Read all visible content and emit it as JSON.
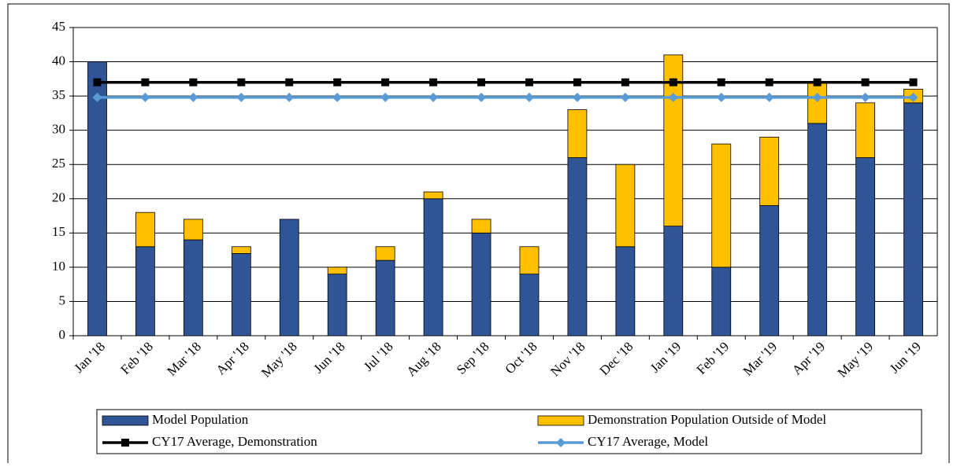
{
  "chart_data": {
    "type": "bar",
    "stacked": true,
    "categories": [
      "Jan '18",
      "Feb '18",
      "Mar '18",
      "Apr '18",
      "May '18",
      "Jun '18",
      "Jul '18",
      "Aug '18",
      "Sep '18",
      "Oct '18",
      "Nov '18",
      "Dec '18",
      "Jan '19",
      "Feb '19",
      "Mar '19",
      "Apr '19",
      "May '19",
      "Jun '19"
    ],
    "series": [
      {
        "name": "Model Population",
        "type": "bar",
        "color": "#2f5597",
        "values": [
          40,
          13,
          14,
          12,
          17,
          9,
          11,
          20,
          15,
          9,
          26,
          13,
          16,
          10,
          19,
          31,
          26,
          34
        ]
      },
      {
        "name": "Demonstration Population Outside of Model",
        "type": "bar",
        "color": "#ffc000",
        "values": [
          0,
          5,
          3,
          1,
          0,
          1,
          2,
          1,
          2,
          4,
          7,
          12,
          25,
          18,
          10,
          6,
          8,
          2
        ]
      },
      {
        "name": "CY17 Average, Demonstration",
        "type": "line",
        "marker": "square",
        "color": "#000000",
        "values": [
          37,
          37,
          37,
          37,
          37,
          37,
          37,
          37,
          37,
          37,
          37,
          37,
          37,
          37,
          37,
          37,
          37,
          37
        ]
      },
      {
        "name": "CY17 Average, Model",
        "type": "line",
        "marker": "diamond",
        "color": "#5b9bd5",
        "values": [
          34.8,
          34.8,
          34.8,
          34.8,
          34.8,
          34.8,
          34.8,
          34.8,
          34.8,
          34.8,
          34.8,
          34.8,
          34.8,
          34.8,
          34.8,
          34.8,
          34.8,
          34.8
        ]
      }
    ],
    "ylim": [
      0,
      45
    ],
    "yticks": [
      0,
      5,
      10,
      15,
      20,
      25,
      30,
      35,
      40,
      45
    ],
    "grid": true,
    "legend": "bottom"
  }
}
